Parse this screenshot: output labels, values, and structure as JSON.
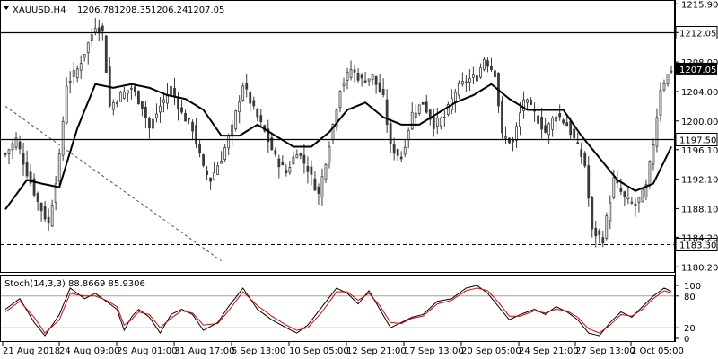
{
  "header": {
    "symbol": "XAUUSD,H4",
    "open": "1206.78",
    "high": "1208.35",
    "low": "1206.24",
    "close": "1207.05"
  },
  "indicator": {
    "label": "Stoch(14,3,3) 88.8669 85.9306",
    "levels": [
      100,
      80,
      20,
      0
    ]
  },
  "colors": {
    "background": "#ffffff",
    "candle": "#3a3a3a",
    "ma": "#000000",
    "stoch_main": "#000000",
    "stoch_signal": "#e00000",
    "trendline": "#555555",
    "stoch_level": "#a0a0a0"
  },
  "chart_data": [
    {
      "type": "candlestick",
      "title": "XAUUSD,H4",
      "y_ticks": [
        1215.9,
        1212.0,
        1208.0,
        1204.0,
        1200.0,
        1196.1,
        1192.1,
        1188.1,
        1184.2,
        1180.2
      ],
      "y_tick_labels": [
        "1215.90",
        "",
        "1208.00",
        "1204.00",
        "1200.00",
        "1196.10",
        "1192.10",
        "1188.10",
        "1184.20",
        "1180.20"
      ],
      "ylim": [
        1179.5,
        1216.3
      ],
      "x_tick_labels": [
        "21 Aug 2018",
        "24 Aug 09:00",
        "29 Aug 01:00",
        "31 Aug 17:00",
        "5 Sep 13:00",
        "10 Sep 05:00",
        "12 Sep 21:00",
        "17 Sep 13:00",
        "20 Sep 05:00",
        "24 Sep 21:00",
        "27 Sep 13:00",
        "2 Oct 05:00"
      ],
      "grid": false,
      "current_price": {
        "value": 1207.05,
        "label": "1207.05"
      },
      "horizontal_levels": [
        {
          "value": 1212.05,
          "label": "1212.05",
          "style": "solid"
        },
        {
          "value": 1197.5,
          "label": "1197.50",
          "style": "solid"
        },
        {
          "value": 1183.3,
          "label": "1183.30",
          "style": "dashed"
        }
      ],
      "trendline": {
        "style": "dashed",
        "points": [
          [
            0,
            1202.0
          ],
          [
            60,
            1181.0
          ]
        ]
      },
      "close_anchors": [
        [
          0,
          1195.5
        ],
        [
          3,
          1197.5
        ],
        [
          6,
          1193.0
        ],
        [
          9,
          1189.0
        ],
        [
          12,
          1186.0
        ],
        [
          15,
          1195.0
        ],
        [
          17,
          1205.0
        ],
        [
          20,
          1207.0
        ],
        [
          23,
          1210.5
        ],
        [
          25,
          1213.0
        ],
        [
          27,
          1212.0
        ],
        [
          29,
          1202.0
        ],
        [
          32,
          1203.5
        ],
        [
          35,
          1204.5
        ],
        [
          38,
          1202.0
        ],
        [
          40,
          1199.0
        ],
        [
          43,
          1202.0
        ],
        [
          46,
          1204.5
        ],
        [
          49,
          1201.0
        ],
        [
          52,
          1199.0
        ],
        [
          55,
          1193.5
        ],
        [
          57,
          1192.0
        ],
        [
          60,
          1195.0
        ],
        [
          63,
          1199.0
        ],
        [
          66,
          1205.0
        ],
        [
          69,
          1201.5
        ],
        [
          72,
          1198.5
        ],
        [
          75,
          1195.0
        ],
        [
          78,
          1193.0
        ],
        [
          81,
          1196.0
        ],
        [
          84,
          1193.5
        ],
        [
          87,
          1190.0
        ],
        [
          90,
          1197.0
        ],
        [
          93,
          1204.5
        ],
        [
          96,
          1207.0
        ],
        [
          99,
          1205.5
        ],
        [
          102,
          1206.0
        ],
        [
          105,
          1203.0
        ],
        [
          107,
          1196.5
        ],
        [
          110,
          1195.0
        ],
        [
          113,
          1201.0
        ],
        [
          116,
          1202.5
        ],
        [
          119,
          1199.5
        ],
        [
          122,
          1200.5
        ],
        [
          125,
          1204.0
        ],
        [
          128,
          1205.5
        ],
        [
          131,
          1206.0
        ],
        [
          133,
          1208.5
        ],
        [
          136,
          1206.5
        ],
        [
          138,
          1198.0
        ],
        [
          141,
          1197.0
        ],
        [
          144,
          1203.0
        ],
        [
          147,
          1201.0
        ],
        [
          150,
          1198.5
        ],
        [
          153,
          1201.0
        ],
        [
          156,
          1199.5
        ],
        [
          159,
          1196.5
        ],
        [
          161,
          1194.0
        ],
        [
          163,
          1185.0
        ],
        [
          166,
          1184.0
        ],
        [
          169,
          1192.0
        ],
        [
          172,
          1189.5
        ],
        [
          175,
          1188.5
        ],
        [
          178,
          1191.0
        ],
        [
          180,
          1197.0
        ],
        [
          182,
          1204.5
        ],
        [
          185,
          1207.05
        ]
      ],
      "moving_average_anchors": [
        [
          0,
          1188.0
        ],
        [
          6,
          1192.0
        ],
        [
          10,
          1191.5
        ],
        [
          15,
          1191.0
        ],
        [
          20,
          1199.0
        ],
        [
          25,
          1205.0
        ],
        [
          30,
          1204.5
        ],
        [
          35,
          1205.0
        ],
        [
          40,
          1204.5
        ],
        [
          45,
          1203.5
        ],
        [
          50,
          1203.0
        ],
        [
          55,
          1201.5
        ],
        [
          60,
          1198.0
        ],
        [
          65,
          1198.0
        ],
        [
          70,
          1199.5
        ],
        [
          75,
          1198.0
        ],
        [
          80,
          1196.5
        ],
        [
          85,
          1196.5
        ],
        [
          90,
          1198.5
        ],
        [
          95,
          1201.5
        ],
        [
          100,
          1202.5
        ],
        [
          105,
          1200.5
        ],
        [
          110,
          1199.5
        ],
        [
          115,
          1199.5
        ],
        [
          120,
          1201.0
        ],
        [
          125,
          1202.5
        ],
        [
          130,
          1203.5
        ],
        [
          135,
          1205.0
        ],
        [
          140,
          1203.0
        ],
        [
          145,
          1201.5
        ],
        [
          150,
          1201.5
        ],
        [
          155,
          1201.5
        ],
        [
          160,
          1198.0
        ],
        [
          165,
          1195.0
        ],
        [
          170,
          1192.0
        ],
        [
          175,
          1190.5
        ],
        [
          180,
          1191.5
        ],
        [
          185,
          1196.5
        ]
      ],
      "bar_count": 186
    },
    {
      "type": "line",
      "title": "Stoch(14,3,3) 88.8669 85.9306",
      "ylim": [
        0,
        100
      ],
      "levels": [
        100,
        80,
        20,
        0
      ],
      "level_labels": [
        "100",
        "80",
        "20",
        "0"
      ],
      "series": [
        {
          "name": "",
          "anchors": [
            [
              0,
              55
            ],
            [
              4,
              75
            ],
            [
              8,
              30
            ],
            [
              11,
              5
            ],
            [
              15,
              45
            ],
            [
              18,
              95
            ],
            [
              22,
              75
            ],
            [
              25,
              85
            ],
            [
              28,
              70
            ],
            [
              31,
              55
            ],
            [
              33,
              15
            ],
            [
              35,
              40
            ],
            [
              37,
              55
            ],
            [
              40,
              40
            ],
            [
              43,
              10
            ],
            [
              46,
              45
            ],
            [
              49,
              55
            ],
            [
              52,
              45
            ],
            [
              55,
              15
            ],
            [
              59,
              30
            ],
            [
              62,
              60
            ],
            [
              66,
              95
            ],
            [
              70,
              55
            ],
            [
              74,
              35
            ],
            [
              78,
              20
            ],
            [
              81,
              10
            ],
            [
              84,
              25
            ],
            [
              88,
              60
            ],
            [
              92,
              95
            ],
            [
              95,
              85
            ],
            [
              98,
              65
            ],
            [
              101,
              90
            ],
            [
              104,
              55
            ],
            [
              107,
              20
            ],
            [
              110,
              30
            ],
            [
              113,
              40
            ],
            [
              116,
              45
            ],
            [
              120,
              70
            ],
            [
              124,
              75
            ],
            [
              128,
              95
            ],
            [
              131,
              100
            ],
            [
              134,
              85
            ],
            [
              137,
              60
            ],
            [
              140,
              35
            ],
            [
              143,
              45
            ],
            [
              147,
              55
            ],
            [
              150,
              45
            ],
            [
              153,
              60
            ],
            [
              156,
              50
            ],
            [
              159,
              35
            ],
            [
              162,
              10
            ],
            [
              165,
              5
            ],
            [
              168,
              30
            ],
            [
              171,
              50
            ],
            [
              174,
              40
            ],
            [
              177,
              60
            ],
            [
              180,
              80
            ],
            [
              183,
              95
            ],
            [
              185,
              88.8669
            ]
          ]
        },
        {
          "name": "",
          "anchors": [
            [
              0,
              50
            ],
            [
              4,
              70
            ],
            [
              8,
              40
            ],
            [
              11,
              10
            ],
            [
              15,
              35
            ],
            [
              18,
              85
            ],
            [
              22,
              80
            ],
            [
              25,
              80
            ],
            [
              28,
              72
            ],
            [
              31,
              60
            ],
            [
              33,
              25
            ],
            [
              35,
              35
            ],
            [
              37,
              50
            ],
            [
              40,
              45
            ],
            [
              43,
              20
            ],
            [
              46,
              38
            ],
            [
              49,
              52
            ],
            [
              52,
              48
            ],
            [
              55,
              25
            ],
            [
              59,
              28
            ],
            [
              62,
              52
            ],
            [
              66,
              88
            ],
            [
              70,
              62
            ],
            [
              74,
              42
            ],
            [
              78,
              25
            ],
            [
              81,
              15
            ],
            [
              84,
              20
            ],
            [
              88,
              50
            ],
            [
              92,
              88
            ],
            [
              95,
              88
            ],
            [
              98,
              72
            ],
            [
              101,
              85
            ],
            [
              104,
              62
            ],
            [
              107,
              30
            ],
            [
              110,
              28
            ],
            [
              113,
              38
            ],
            [
              116,
              42
            ],
            [
              120,
              65
            ],
            [
              124,
              72
            ],
            [
              128,
              90
            ],
            [
              131,
              95
            ],
            [
              134,
              90
            ],
            [
              137,
              68
            ],
            [
              140,
              42
            ],
            [
              143,
              42
            ],
            [
              147,
              52
            ],
            [
              150,
              48
            ],
            [
              153,
              55
            ],
            [
              156,
              52
            ],
            [
              159,
              40
            ],
            [
              162,
              18
            ],
            [
              165,
              10
            ],
            [
              168,
              25
            ],
            [
              171,
              45
            ],
            [
              174,
              42
            ],
            [
              177,
              55
            ],
            [
              180,
              75
            ],
            [
              183,
              90
            ],
            [
              185,
              85.9306
            ]
          ]
        }
      ]
    }
  ]
}
